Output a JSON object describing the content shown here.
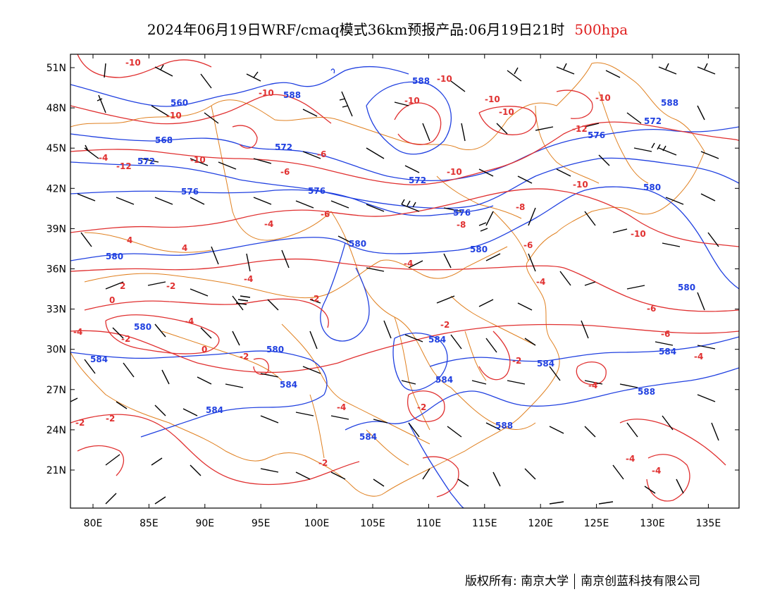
{
  "title": {
    "main": "2024年06月19日WRF/cmaq模式36km预报产品:06月19日21时",
    "level": "500hpa"
  },
  "footer": {
    "copyright": "版权所有: 南京大学",
    "company": "南京创蓝科技有限公司"
  },
  "axes": {
    "lon_ticks": [
      "80E",
      "85E",
      "90E",
      "95E",
      "100E",
      "105E",
      "110E",
      "115E",
      "120E",
      "125E",
      "130E",
      "135E"
    ],
    "lat_ticks": [
      "51N",
      "48N",
      "45N",
      "42N",
      "39N",
      "36N",
      "33N",
      "30N",
      "27N",
      "24N",
      "21N"
    ]
  },
  "colors": {
    "height_contour": "#2040e0",
    "temp_contour": "#e03030",
    "boundary": "#e08020",
    "wind_barb": "#000000"
  },
  "height_labels": [
    "560",
    "568",
    "572",
    "576",
    "580",
    "584",
    "588"
  ],
  "temp_labels": [
    "-2",
    "-4",
    "-6",
    "-8",
    "-10",
    "-12",
    "-4",
    "0",
    "2",
    "4"
  ]
}
